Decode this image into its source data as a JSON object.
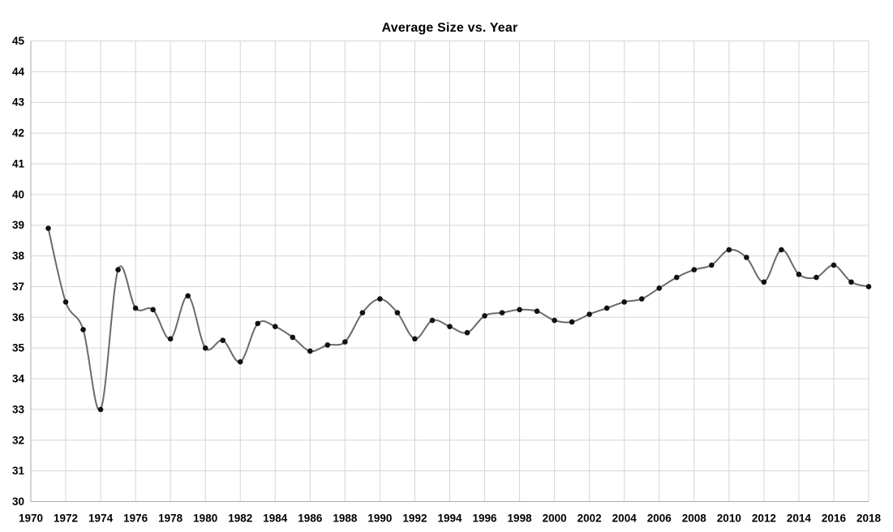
{
  "chart_data": {
    "type": "line",
    "title": "Average Size vs. Year",
    "series": [
      {
        "name": "Average Size",
        "x": [
          1971,
          1972,
          1973,
          1974,
          1975,
          1976,
          1977,
          1978,
          1979,
          1980,
          1981,
          1982,
          1983,
          1984,
          1985,
          1986,
          1987,
          1988,
          1989,
          1990,
          1991,
          1992,
          1993,
          1994,
          1995,
          1996,
          1997,
          1998,
          1999,
          2000,
          2001,
          2002,
          2003,
          2004,
          2005,
          2006,
          2007,
          2008,
          2009,
          2010,
          2011,
          2012,
          2013,
          2014,
          2015,
          2016,
          2017,
          2018
        ],
        "y": [
          38.9,
          36.5,
          35.6,
          33.0,
          37.55,
          36.3,
          36.25,
          35.3,
          36.7,
          35.0,
          35.25,
          34.55,
          35.8,
          35.7,
          35.35,
          34.9,
          35.1,
          35.2,
          36.15,
          36.6,
          36.15,
          35.3,
          35.9,
          35.7,
          35.5,
          36.05,
          36.15,
          36.25,
          36.2,
          35.9,
          35.85,
          36.1,
          36.3,
          36.5,
          36.6,
          36.95,
          37.3,
          37.55,
          37.7,
          38.2,
          37.95,
          37.15,
          38.2,
          37.4,
          37.3,
          37.7,
          37.15,
          37.0
        ]
      }
    ],
    "x_axis": {
      "min": 1970,
      "max": 2018,
      "tick_step": 2,
      "tick_labels": [
        "1970",
        "1972",
        "1974",
        "1976",
        "1978",
        "1980",
        "1982",
        "1984",
        "1986",
        "1988",
        "1990",
        "1992",
        "1994",
        "1996",
        "1998",
        "2000",
        "2002",
        "2004",
        "2006",
        "2008",
        "2010",
        "2012",
        "2014",
        "2016",
        "2018"
      ]
    },
    "y_axis": {
      "min": 30,
      "max": 45,
      "tick_step": 1,
      "tick_labels": [
        "30",
        "31",
        "32",
        "33",
        "34",
        "35",
        "36",
        "37",
        "38",
        "39",
        "40",
        "41",
        "42",
        "43",
        "44",
        "45"
      ]
    },
    "grid": "on",
    "legend": "none",
    "smoothed": true,
    "marker": "circle",
    "colors": {
      "line": "#6a6a6a",
      "marker": "#111111",
      "gridline": "#d5d5d5",
      "axis_line": "#aaaaaa",
      "text": "#000000",
      "background": "#ffffff"
    }
  }
}
